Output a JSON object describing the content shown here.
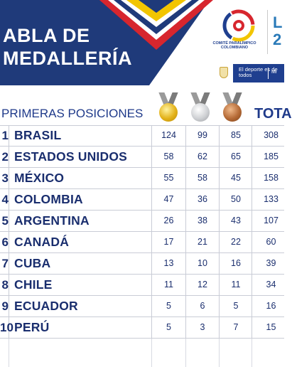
{
  "title": {
    "line1": "ABLA DE",
    "line2": "MEDALLERÍA"
  },
  "brand": {
    "committee_name": "COMITÉ PARALÍMPICO COLOMBIANO",
    "side_logo_text": "L 2",
    "ministry_tagline": "El deporte es de todos",
    "ministry_short": "Mi"
  },
  "heading": {
    "label": "PRIMERAS POSICIONES",
    "total_label": "TOTA"
  },
  "colors": {
    "navy": "#1f3a7a",
    "text_blue": "#1a2e6e",
    "gold": "#e3b21a",
    "silver": "#bfc1c4",
    "bronze": "#b56a36"
  },
  "medals": [
    "gold-medal-icon",
    "silver-medal-icon",
    "bronze-medal-icon"
  ],
  "rows": [
    {
      "rank": "1",
      "country": "BRASIL",
      "gold": "124",
      "silver": "99",
      "bronze": "85",
      "total": "308"
    },
    {
      "rank": "2",
      "country": "ESTADOS UNIDOS",
      "gold": "58",
      "silver": "62",
      "bronze": "65",
      "total": "185"
    },
    {
      "rank": "3",
      "country": "MÉXICO",
      "gold": "55",
      "silver": "58",
      "bronze": "45",
      "total": "158"
    },
    {
      "rank": "4",
      "country": "COLOMBIA",
      "gold": "47",
      "silver": "36",
      "bronze": "50",
      "total": "133"
    },
    {
      "rank": "5",
      "country": "ARGENTINA",
      "gold": "26",
      "silver": "38",
      "bronze": "43",
      "total": "107"
    },
    {
      "rank": "6",
      "country": "CANADÁ",
      "gold": "17",
      "silver": "21",
      "bronze": "22",
      "total": "60"
    },
    {
      "rank": "7",
      "country": "CUBA",
      "gold": "13",
      "silver": "10",
      "bronze": "16",
      "total": "39"
    },
    {
      "rank": "8",
      "country": "CHILE",
      "gold": "11",
      "silver": "12",
      "bronze": "11",
      "total": "34"
    },
    {
      "rank": "9",
      "country": "ECUADOR",
      "gold": "5",
      "silver": "6",
      "bronze": "5",
      "total": "16"
    },
    {
      "rank": "10",
      "country": "PERÚ",
      "gold": "5",
      "silver": "3",
      "bronze": "7",
      "total": "15"
    }
  ]
}
